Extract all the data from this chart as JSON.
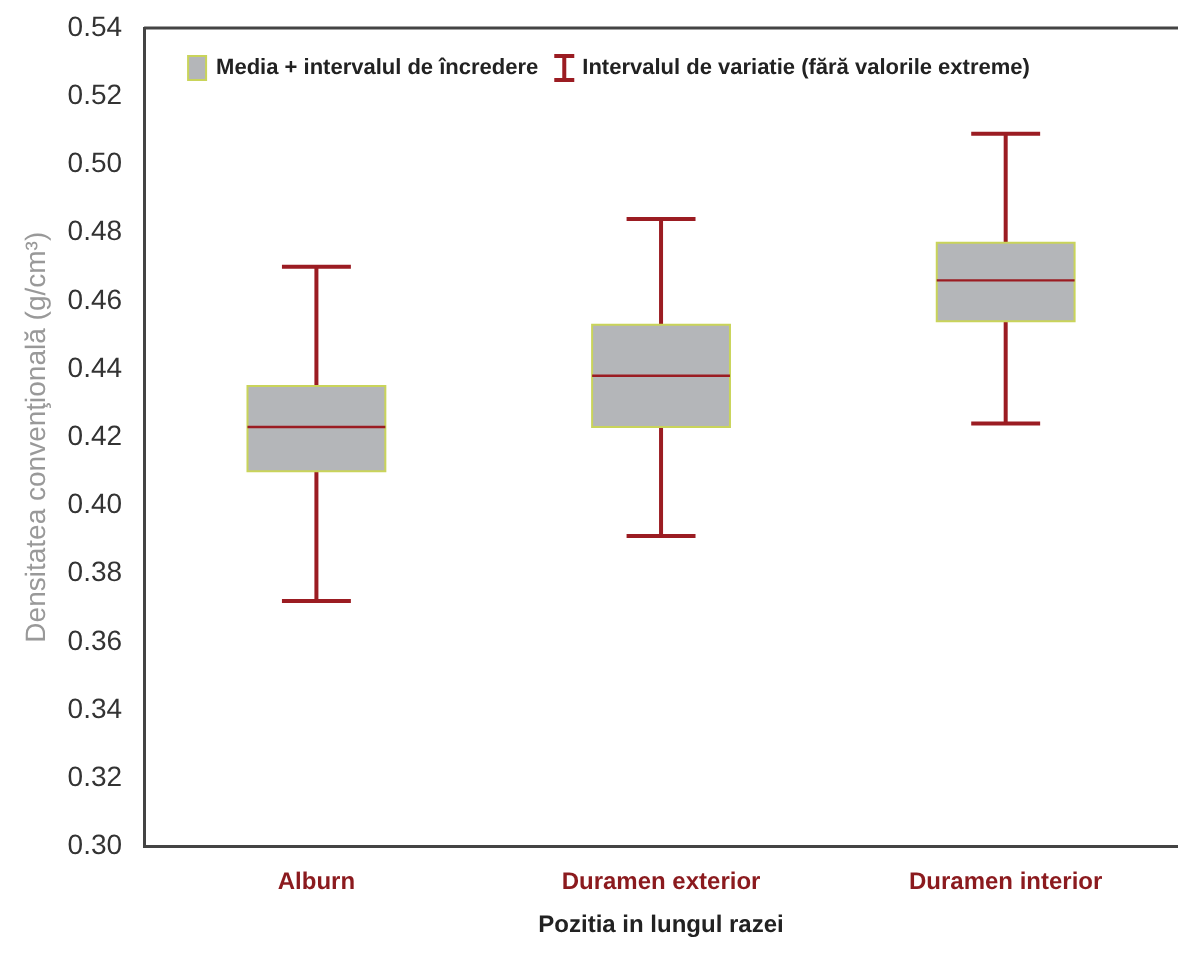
{
  "chart_data": {
    "type": "box",
    "xlabel": "Pozitia in lungul razei",
    "ylabel": "Densitatea convenţională (g/cm³)",
    "categories": [
      "Alburn",
      "Duramen exterior",
      "Duramen interior"
    ],
    "series": [
      {
        "name": "Media + intervalul de încredere",
        "color": "#b4b6b9",
        "boxes": [
          {
            "low": 0.372,
            "q1": 0.41,
            "median": 0.423,
            "q3": 0.435,
            "high": 0.47
          },
          {
            "low": 0.391,
            "q1": 0.423,
            "median": 0.438,
            "q3": 0.453,
            "high": 0.484
          },
          {
            "low": 0.424,
            "q1": 0.454,
            "median": 0.466,
            "q3": 0.477,
            "high": 0.509
          }
        ]
      }
    ],
    "annotations": [
      "Intervalul de variatie (fără valorile extreme)"
    ],
    "ylim": [
      0.3,
      0.54
    ],
    "yticks": [
      {
        "value": 0.3,
        "label": "0.30"
      },
      {
        "value": 0.32,
        "label": "0.32"
      },
      {
        "value": 0.34,
        "label": "0.34"
      },
      {
        "value": 0.36,
        "label": "0.36"
      },
      {
        "value": 0.38,
        "label": "0.38"
      },
      {
        "value": 0.4,
        "label": "0.40"
      },
      {
        "value": 0.42,
        "label": "0.42"
      },
      {
        "value": 0.44,
        "label": "0.44"
      },
      {
        "value": 0.46,
        "label": "0.46"
      },
      {
        "value": 0.48,
        "label": "0.48"
      },
      {
        "value": 0.5,
        "label": "0.50"
      },
      {
        "value": 0.52,
        "label": "0.52"
      },
      {
        "value": 0.54,
        "label": "0.54"
      }
    ],
    "grid": false,
    "legend": "top"
  }
}
